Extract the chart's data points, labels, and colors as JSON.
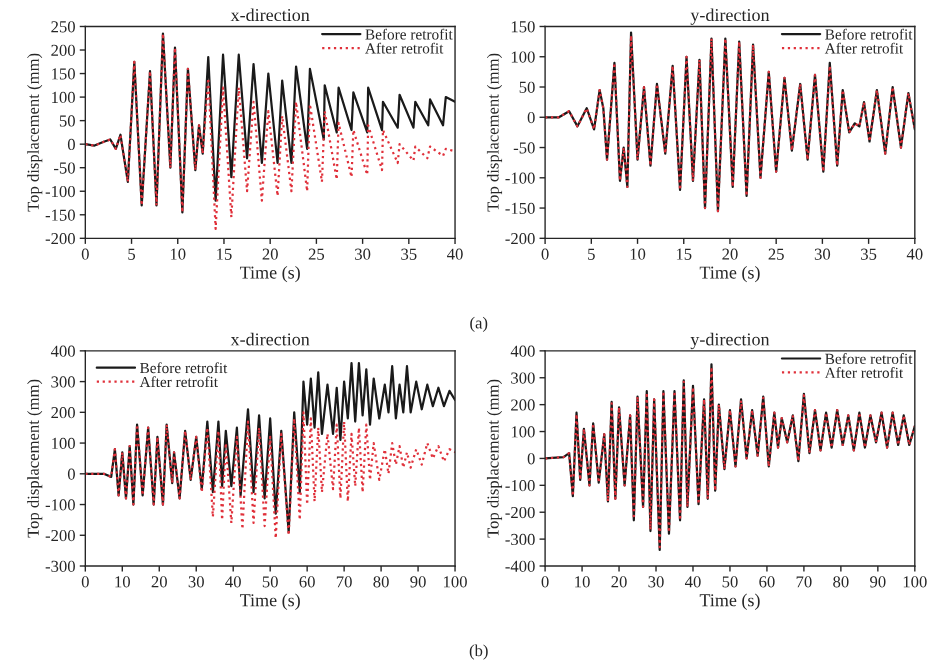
{
  "chart_data": [
    {
      "type": "line",
      "title": "x-direction",
      "xlabel": "Time (s)",
      "ylabel": "Top displacement (mm)",
      "xlim": [
        0,
        40
      ],
      "ylim": [
        -200,
        250
      ],
      "xticks": [
        0,
        5,
        10,
        15,
        20,
        25,
        30,
        35,
        40
      ],
      "yticks": [
        -200,
        -150,
        -100,
        -50,
        0,
        50,
        100,
        150,
        200,
        250
      ],
      "legend": "top right",
      "annotations": [
        "(a)"
      ],
      "series": [
        {
          "name": "Before retrofit",
          "color": "#1a1a1a",
          "line_style": "solid",
          "x": [
            0,
            1,
            2,
            2.7,
            3.3,
            3.8,
            4.6,
            5.3,
            6.1,
            7,
            7.7,
            8.4,
            9.2,
            9.7,
            10.5,
            11.1,
            11.9,
            12.3,
            12.7,
            13.3,
            14.1,
            14.9,
            15.8,
            16.6,
            17.5,
            18.2,
            19.1,
            19.8,
            20.8,
            21.3,
            22.3,
            22.8,
            24,
            24.3,
            25.8,
            25.9,
            27.2,
            27.4,
            28.8,
            29,
            30.5,
            30.6,
            32.1,
            32.2,
            33.8,
            34,
            35.5,
            35.7,
            37.1,
            37.3,
            38.7,
            39,
            40
          ],
          "values": [
            0,
            -3,
            5,
            10,
            -10,
            20,
            -80,
            175,
            -130,
            155,
            -130,
            235,
            -50,
            205,
            -145,
            160,
            -55,
            40,
            -20,
            185,
            -120,
            190,
            -70,
            190,
            -30,
            170,
            -40,
            150,
            -40,
            135,
            -40,
            165,
            -10,
            160,
            10,
            125,
            25,
            120,
            30,
            110,
            25,
            120,
            30,
            90,
            35,
            105,
            35,
            90,
            40,
            95,
            40,
            100,
            90
          ]
        },
        {
          "name": "After retrofit",
          "color": "#e0303a",
          "line_style": "dotted",
          "x": [
            0,
            1,
            2,
            2.7,
            3.3,
            3.8,
            4.6,
            5.3,
            6.1,
            7,
            7.7,
            8.4,
            9.2,
            9.7,
            10.5,
            11.1,
            11.9,
            12.3,
            12.7,
            13.3,
            14.1,
            14.9,
            15.8,
            16.6,
            17.5,
            18.2,
            19.1,
            19.8,
            20.8,
            21.3,
            22.3,
            22.8,
            24,
            24.3,
            25.6,
            25.9,
            27.2,
            27.4,
            28.8,
            29,
            30.5,
            30.6,
            32.1,
            32.2,
            33.8,
            34,
            35.5,
            35.7,
            37,
            37.3,
            38.7,
            39,
            40
          ],
          "values": [
            0,
            -3,
            5,
            10,
            -10,
            20,
            -80,
            175,
            -130,
            155,
            -130,
            235,
            -50,
            205,
            -145,
            160,
            -55,
            40,
            -20,
            140,
            -180,
            120,
            -155,
            120,
            -100,
            90,
            -120,
            70,
            -110,
            60,
            -100,
            90,
            -100,
            85,
            -80,
            70,
            -75,
            45,
            -70,
            30,
            -65,
            40,
            -55,
            30,
            -40,
            0,
            -35,
            -5,
            -30,
            -5,
            -25,
            -10,
            -15
          ]
        }
      ]
    },
    {
      "type": "line",
      "title": "y-direction",
      "xlabel": "Time (s)",
      "ylabel": "Top displacement (mm)",
      "xlim": [
        0,
        40
      ],
      "ylim": [
        -200,
        150
      ],
      "xticks": [
        0,
        5,
        10,
        15,
        20,
        25,
        30,
        35,
        40
      ],
      "yticks": [
        -200,
        -150,
        -100,
        -50,
        0,
        50,
        100,
        150
      ],
      "legend": "top right",
      "series": [
        {
          "name": "Before retrofit",
          "color": "#1a1a1a",
          "line_style": "solid",
          "x": [
            0,
            1.5,
            2.6,
            3.5,
            4.5,
            5.3,
            5.9,
            6.3,
            6.7,
            7.5,
            8.1,
            8.5,
            8.9,
            9.3,
            10,
            10.7,
            11.4,
            12.1,
            13,
            13.8,
            14.6,
            15.3,
            16,
            16.7,
            17.3,
            18,
            18.7,
            19.5,
            20.3,
            21,
            21.8,
            22.5,
            23.3,
            24.2,
            25,
            25.9,
            26.7,
            27.6,
            28.4,
            29.2,
            30.1,
            30.8,
            31.6,
            32.2,
            32.9,
            33.5,
            34,
            34.5,
            35.1,
            35.9,
            36.8,
            37.6,
            38.5,
            39.3,
            40
          ],
          "values": [
            0,
            0,
            10,
            -15,
            15,
            -20,
            45,
            15,
            -70,
            90,
            -105,
            -50,
            -115,
            140,
            -70,
            50,
            -80,
            55,
            -60,
            85,
            -120,
            100,
            -105,
            95,
            -150,
            130,
            -155,
            130,
            -115,
            125,
            -130,
            120,
            -100,
            75,
            -90,
            65,
            -55,
            55,
            -70,
            70,
            -90,
            90,
            -80,
            45,
            -25,
            -10,
            -15,
            25,
            -40,
            45,
            -60,
            50,
            -50,
            40,
            -20
          ]
        },
        {
          "name": "After retrofit",
          "color": "#e0303a",
          "line_style": "dotted",
          "x": [
            0,
            1.5,
            2.6,
            3.5,
            4.5,
            5.3,
            5.9,
            6.3,
            6.7,
            7.5,
            8.1,
            8.5,
            8.9,
            9.3,
            10,
            10.7,
            11.4,
            12.1,
            13,
            13.8,
            14.6,
            15.3,
            16,
            16.7,
            17.3,
            18,
            18.7,
            19.5,
            20.3,
            21,
            21.8,
            22.5,
            23.3,
            24.2,
            25,
            25.9,
            26.7,
            27.6,
            28.4,
            29.2,
            30.1,
            30.8,
            31.6,
            32.2,
            32.9,
            33.5,
            34,
            34.5,
            35.1,
            35.9,
            36.8,
            37.6,
            38.5,
            39.3,
            40
          ],
          "values": [
            0,
            0,
            10,
            -15,
            15,
            -20,
            45,
            15,
            -70,
            90,
            -105,
            -50,
            -115,
            135,
            -70,
            50,
            -80,
            55,
            -60,
            85,
            -120,
            100,
            -105,
            95,
            -150,
            130,
            -155,
            130,
            -115,
            125,
            -130,
            120,
            -100,
            75,
            -90,
            65,
            -55,
            55,
            -70,
            70,
            -90,
            85,
            -80,
            45,
            -25,
            -10,
            -15,
            25,
            -40,
            45,
            -60,
            50,
            -50,
            40,
            -20
          ]
        }
      ]
    },
    {
      "type": "line",
      "title": "x-direction",
      "xlabel": "Time (s)",
      "ylabel": "Top displacement (mm)",
      "xlim": [
        0,
        100
      ],
      "ylim": [
        -300,
        400
      ],
      "xticks": [
        0,
        10,
        20,
        30,
        40,
        50,
        60,
        70,
        80,
        90,
        100
      ],
      "yticks": [
        -300,
        -200,
        -100,
        0,
        100,
        200,
        300,
        400
      ],
      "legend": "top left",
      "annotations": [
        "(b)"
      ],
      "series": [
        {
          "name": "Before retrofit",
          "color": "#1a1a1a",
          "line_style": "solid",
          "x": [
            0,
            5,
            7,
            8,
            9,
            10,
            11,
            12,
            13,
            14,
            15.5,
            17,
            18.5,
            19.5,
            21,
            22,
            23.5,
            24,
            25.5,
            27,
            28.5,
            30,
            31.5,
            33,
            34.5,
            36,
            37,
            38,
            39.5,
            41,
            42,
            44,
            45.5,
            47,
            48.5,
            50,
            51.5,
            53,
            55,
            56.5,
            58,
            59,
            60,
            61,
            62,
            63,
            64,
            65.5,
            67,
            68,
            69,
            70,
            71,
            72,
            73,
            74,
            75,
            76,
            77,
            78,
            79.5,
            81,
            82,
            83,
            84,
            85,
            86,
            87,
            88,
            89.5,
            91,
            92.5,
            94,
            95.5,
            97,
            98.5,
            100
          ],
          "values": [
            0,
            0,
            -10,
            80,
            -70,
            70,
            -80,
            90,
            -100,
            160,
            -70,
            150,
            -100,
            120,
            -100,
            160,
            -30,
            70,
            -80,
            140,
            -20,
            120,
            -50,
            170,
            -60,
            170,
            -40,
            140,
            -40,
            150,
            -70,
            210,
            -60,
            190,
            -80,
            180,
            -130,
            140,
            -190,
            200,
            -60,
            300,
            160,
            310,
            150,
            330,
            130,
            290,
            130,
            280,
            110,
            300,
            180,
            360,
            170,
            360,
            190,
            340,
            160,
            310,
            180,
            290,
            200,
            350,
            180,
            290,
            200,
            350,
            200,
            300,
            210,
            290,
            220,
            280,
            220,
            270,
            240
          ]
        },
        {
          "name": "After retrofit",
          "color": "#e0303a",
          "line_style": "dotted",
          "x": [
            0,
            5,
            7,
            8,
            9,
            10,
            11,
            12,
            13,
            14,
            15.5,
            17,
            18.5,
            19.5,
            21,
            22,
            23.5,
            24,
            25.5,
            27,
            28.5,
            30,
            31.5,
            33,
            34.5,
            36,
            37,
            38,
            39.5,
            41,
            42.5,
            44,
            45.5,
            47,
            48.5,
            50,
            51.5,
            53,
            55,
            56.5,
            58,
            59,
            60,
            61,
            62,
            63,
            64,
            65.5,
            67,
            68,
            69,
            70,
            71,
            72,
            73,
            74,
            75,
            76,
            77,
            78,
            79.5,
            81,
            82,
            83,
            84,
            85,
            86,
            87,
            88,
            89.5,
            91,
            92.5,
            94,
            95.5,
            97,
            98.5,
            100
          ],
          "values": [
            0,
            0,
            -10,
            80,
            -70,
            70,
            -80,
            90,
            -100,
            160,
            -70,
            150,
            -100,
            120,
            -100,
            160,
            -30,
            70,
            -80,
            140,
            -20,
            120,
            -60,
            150,
            -140,
            140,
            -150,
            100,
            -160,
            120,
            -180,
            170,
            -160,
            150,
            -170,
            120,
            -210,
            130,
            -200,
            180,
            -150,
            200,
            -100,
            180,
            -90,
            150,
            -60,
            130,
            -50,
            160,
            -80,
            170,
            -90,
            130,
            -40,
            150,
            -60,
            160,
            -20,
            100,
            -20,
            80,
            0,
            100,
            30,
            90,
            20,
            70,
            20,
            80,
            30,
            100,
            50,
            90,
            40,
            80,
            70
          ]
        }
      ]
    },
    {
      "type": "line",
      "title": "y-direction",
      "xlabel": "Time (s)",
      "ylabel": "Top displacement (mm)",
      "xlim": [
        0,
        100
      ],
      "ylim": [
        -400,
        400
      ],
      "xticks": [
        0,
        10,
        20,
        30,
        40,
        50,
        60,
        70,
        80,
        90,
        100
      ],
      "yticks": [
        -400,
        -300,
        -200,
        -100,
        0,
        100,
        200,
        300,
        400
      ],
      "legend": "top right",
      "series": [
        {
          "name": "Before retrofit",
          "color": "#1a1a1a",
          "line_style": "solid",
          "x": [
            0,
            5,
            6.5,
            7.5,
            8.5,
            9.5,
            10.5,
            12,
            13,
            14.5,
            16,
            17,
            18,
            19,
            20,
            21.5,
            23,
            24,
            25,
            26.5,
            27.5,
            28.5,
            29.5,
            31,
            32,
            33.5,
            35,
            36.5,
            37.5,
            38.5,
            40,
            41.5,
            43,
            44,
            45,
            46,
            47,
            48.5,
            50,
            51.5,
            53,
            54.5,
            56,
            57.5,
            59,
            60.5,
            62,
            63,
            64,
            65.5,
            67,
            68.5,
            70,
            71.5,
            73,
            74.5,
            76,
            77.5,
            79,
            80.5,
            82,
            83.5,
            85,
            86.5,
            88,
            89.5,
            91,
            92.5,
            94,
            95.5,
            97,
            98.5,
            100
          ],
          "values": [
            0,
            5,
            20,
            -140,
            170,
            -80,
            110,
            -100,
            130,
            -90,
            90,
            -160,
            210,
            -150,
            190,
            -100,
            160,
            -230,
            230,
            -180,
            250,
            -270,
            220,
            -340,
            250,
            -280,
            250,
            -230,
            290,
            -180,
            270,
            -170,
            220,
            -150,
            350,
            -120,
            200,
            -40,
            180,
            -30,
            220,
            0,
            180,
            10,
            230,
            -30,
            170,
            40,
            150,
            60,
            160,
            -10,
            240,
            20,
            180,
            30,
            170,
            40,
            180,
            50,
            160,
            30,
            170,
            40,
            160,
            60,
            170,
            40,
            170,
            50,
            160,
            50,
            120
          ]
        },
        {
          "name": "After retrofit",
          "color": "#e0303a",
          "line_style": "dotted",
          "x": [
            0,
            5,
            6.5,
            7.5,
            8.5,
            9.5,
            10.5,
            12,
            13,
            14.5,
            16,
            17,
            18,
            19,
            20,
            21.5,
            23,
            24,
            25,
            26.5,
            27.5,
            28.5,
            29.5,
            31,
            32,
            33.5,
            35,
            36.5,
            37.5,
            38.5,
            40,
            41.5,
            43,
            44,
            45,
            46,
            47,
            48.5,
            50,
            51.5,
            53,
            54.5,
            56,
            57.5,
            59,
            60.5,
            62,
            63,
            64,
            65.5,
            67,
            68.5,
            70,
            71.5,
            73,
            74.5,
            76,
            77.5,
            79,
            80.5,
            82,
            83.5,
            85,
            86.5,
            88,
            89.5,
            91,
            92.5,
            94,
            95.5,
            97,
            98.5,
            100
          ],
          "values": [
            0,
            5,
            20,
            -140,
            165,
            -80,
            110,
            -100,
            130,
            -90,
            90,
            -160,
            205,
            -150,
            190,
            -100,
            160,
            -225,
            230,
            -180,
            245,
            -265,
            220,
            -330,
            250,
            -275,
            250,
            -230,
            285,
            -180,
            265,
            -170,
            220,
            -150,
            340,
            -120,
            200,
            -40,
            180,
            -30,
            215,
            0,
            180,
            10,
            225,
            -30,
            170,
            40,
            150,
            60,
            160,
            -10,
            235,
            20,
            180,
            30,
            170,
            40,
            180,
            50,
            160,
            30,
            170,
            40,
            160,
            60,
            170,
            40,
            170,
            50,
            160,
            50,
            120
          ]
        }
      ]
    }
  ]
}
